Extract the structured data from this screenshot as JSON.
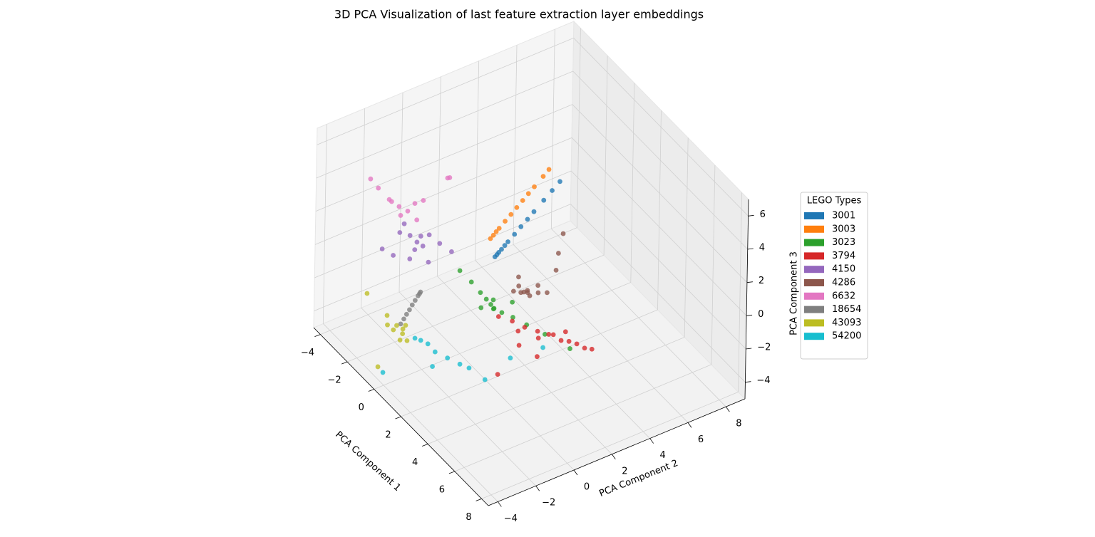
{
  "chart_data": {
    "type": "scatter3d",
    "title": "3D PCA Visualization of last feature extraction layer embeddings",
    "xlabel": "PCA Component 1",
    "ylabel": "PCA Component 2",
    "zlabel": "PCA Component 3",
    "xlim": [
      -4.5,
      8.5
    ],
    "ylim": [
      -4.5,
      9
    ],
    "zlim": [
      -5,
      7
    ],
    "xticks": [
      {
        "value": -4,
        "label": "−4"
      },
      {
        "value": -2,
        "label": "−2"
      },
      0,
      2,
      4,
      6,
      8
    ],
    "yticks": [
      {
        "value": -4,
        "label": "−4"
      },
      {
        "value": -2,
        "label": "−2"
      },
      0,
      2,
      4,
      6,
      8
    ],
    "zticks": [
      {
        "value": -4,
        "label": "−4"
      },
      {
        "value": -2,
        "label": "−2"
      },
      0,
      2,
      4,
      6
    ],
    "grid": true,
    "legend": "right",
    "legend_title": "LEGO Types",
    "series": [
      {
        "name": "3001",
        "color": "#1f77b4",
        "x": [
          1.9,
          1.89,
          1.87,
          1.86,
          1.83,
          1.81,
          1.77,
          1.72,
          1.68,
          1.63,
          1.56,
          1.5,
          1.45
        ],
        "y": [
          0.4,
          0.51,
          0.62,
          0.77,
          0.96,
          1.14,
          1.51,
          1.88,
          2.25,
          2.62,
          3.18,
          3.66,
          4.1
        ],
        "z": [
          2.2,
          2.27,
          2.34,
          2.44,
          2.56,
          2.68,
          2.92,
          3.16,
          3.4,
          3.64,
          4.0,
          4.31,
          4.6
        ]
      },
      {
        "name": "3003",
        "color": "#ff7f0e",
        "x": [
          1.37,
          1.36,
          1.34,
          1.33,
          1.3,
          1.28,
          1.25,
          1.22,
          1.19,
          1.17,
          1.13,
          1.1
        ],
        "y": [
          0.53,
          0.69,
          0.85,
          1.01,
          1.34,
          1.66,
          1.98,
          2.31,
          2.63,
          2.95,
          3.44,
          3.76
        ],
        "z": [
          2.8,
          2.92,
          3.04,
          3.16,
          3.4,
          3.64,
          3.88,
          4.12,
          4.36,
          4.6,
          4.96,
          5.2
        ]
      },
      {
        "name": "3023",
        "color": "#2ca02c",
        "x": [
          0.32,
          0.9,
          1.3,
          1.6,
          1.8,
          1.9,
          2.0,
          1.7,
          2.2,
          2.6,
          3.2,
          4.0,
          5.2,
          1.5,
          2.4
        ],
        "y": [
          -0.3,
          -0.1,
          0.1,
          0.2,
          0.3,
          0.4,
          0.3,
          0.5,
          0.6,
          0.9,
          1.2,
          1.6,
          2.07,
          0.0,
          1.0
        ],
        "z": [
          0.4,
          0.1,
          -0.3,
          -0.5,
          -0.7,
          -0.9,
          -0.8,
          -0.6,
          -1.0,
          -1.1,
          -1.2,
          -1.3,
          -1.4,
          -1.0,
          -0.4
        ]
      },
      {
        "name": "3794",
        "color": "#d62728",
        "x": [
          2.2,
          2.7,
          3.2,
          3.6,
          4.0,
          4.2,
          4.5,
          4.8,
          5.1,
          5.4,
          5.7,
          3.8,
          4.4,
          3.0,
          4.46,
          4.56,
          3.5
        ],
        "y": [
          0.43,
          0.8,
          1.1,
          1.5,
          1.8,
          1.9,
          2.1,
          2.3,
          2.5,
          2.7,
          2.87,
          1.4,
          2.4,
          0.9,
          -1.2,
          0.8,
          0.6
        ],
        "z": [
          -1.16,
          -1.2,
          -1.3,
          -1.4,
          -1.4,
          -1.3,
          -1.5,
          -1.4,
          -1.4,
          -1.5,
          -1.4,
          -1.6,
          -1.2,
          -1.6,
          -2.0,
          -1.8,
          -1.9
        ]
      },
      {
        "name": "4150",
        "color": "#9467bd",
        "x": [
          -1.06,
          -1.3,
          -0.9,
          -1.2,
          -0.8,
          -1.5,
          -1.0,
          -0.5,
          0.1,
          -1.4,
          -1.8,
          -0.6,
          -1.6,
          -0.2
        ],
        "y": [
          -1.6,
          -1.8,
          -1.4,
          -1.3,
          -1.9,
          -2.2,
          -1.0,
          -0.8,
          -0.6,
          -2.6,
          -2.9,
          -2.3,
          -1.9,
          -1.6
        ],
        "z": [
          1.6,
          1.9,
          1.4,
          1.7,
          1.5,
          2.1,
          1.8,
          1.6,
          1.5,
          1.0,
          1.2,
          1.3,
          2.4,
          1.1
        ]
      },
      {
        "name": "4286",
        "color": "#8c564b",
        "x": [
          2.5,
          2.3,
          2.7,
          2.6,
          2.4,
          2.9,
          2.2,
          2.8,
          2.6,
          2.0,
          2.17,
          2.4,
          2.8,
          3.0
        ],
        "y": [
          1.53,
          1.4,
          1.7,
          1.3,
          1.8,
          2.0,
          1.2,
          1.5,
          2.2,
          1.6,
          3.8,
          3.4,
          3.0,
          2.4
        ],
        "z": [
          0.04,
          0.3,
          -0.1,
          0.2,
          -0.2,
          0.1,
          0.0,
          0.4,
          0.2,
          0.5,
          2.2,
          1.4,
          0.9,
          0.0
        ]
      },
      {
        "name": "6632",
        "color": "#e377c2",
        "x": [
          -1.75,
          -1.5,
          -2.0,
          -1.9,
          -2.3,
          -2.6,
          -1.4,
          -1.2,
          -1.6,
          -1.36,
          -1.3,
          -1.1
        ],
        "y": [
          -2.08,
          -1.8,
          -2.3,
          -2.5,
          -2.8,
          -3.0,
          -1.5,
          -1.2,
          -2.1,
          0.18,
          0.25,
          -1.6
        ],
        "z": [
          3.4,
          3.2,
          3.6,
          3.9,
          4.4,
          4.8,
          3.6,
          3.8,
          3.0,
          4.36,
          4.4,
          2.9
        ]
      },
      {
        "name": "18654",
        "color": "#7f7f7f",
        "x": [
          0.27,
          0.33,
          0.4,
          0.47,
          0.55,
          0.62,
          0.7,
          0.78,
          0.3
        ],
        "y": [
          -2.33,
          -2.5,
          -2.7,
          -2.9,
          -3.1,
          -3.3,
          -3.5,
          -3.72,
          -2.4
        ],
        "z": [
          0.04,
          -0.06,
          -0.18,
          -0.3,
          -0.43,
          -0.55,
          -0.67,
          -0.8,
          0.0
        ]
      },
      {
        "name": "43093",
        "color": "#bcbd22",
        "x": [
          0.78,
          0.6,
          0.9,
          0.7,
          1.0,
          0.5,
          -1.22,
          -0.06,
          0.2,
          0.3,
          1.1
        ],
        "y": [
          -3.6,
          -3.8,
          -3.7,
          -3.4,
          -3.9,
          -3.9,
          -4.08,
          -4.28,
          -4.0,
          -4.1,
          -3.6
        ],
        "z": [
          -1.16,
          -1.0,
          -1.3,
          -1.1,
          -1.5,
          -1.3,
          -0.44,
          -3.8,
          -1.2,
          -0.5,
          -1.6
        ]
      },
      {
        "name": "54200",
        "color": "#17becf",
        "x": [
          1.55,
          1.4,
          1.8,
          2.2,
          2.7,
          3.2,
          3.6,
          4.46,
          -0.17,
          4.4,
          4.56,
          2.3
        ],
        "y": [
          -3.2,
          -3.4,
          -3.0,
          -2.9,
          -2.6,
          -2.3,
          -2.1,
          -1.87,
          -3.93,
          -0.5,
          1.1,
          -3.1
        ],
        "z": [
          -1.4,
          -1.3,
          -1.5,
          -1.7,
          -1.8,
          -1.9,
          -1.9,
          -2.0,
          -4.4,
          -1.4,
          -1.4,
          -2.4
        ]
      }
    ]
  }
}
